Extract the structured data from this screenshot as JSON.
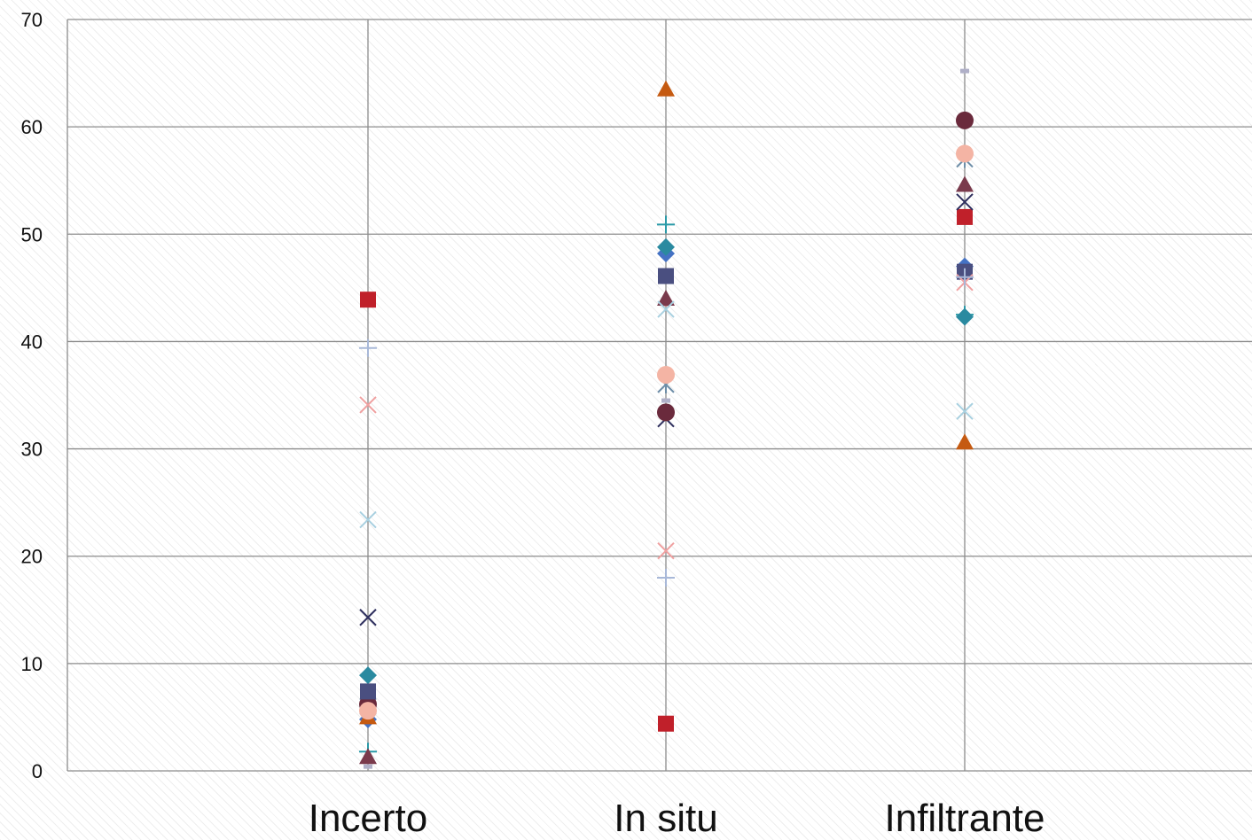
{
  "chart_data": {
    "type": "scatter",
    "categories": [
      "Incerto",
      "In situ",
      "Infiltrante"
    ],
    "ylim": [
      0,
      70
    ],
    "yticks": [
      0,
      10,
      20,
      30,
      40,
      50,
      60,
      70
    ],
    "grid": true,
    "series": [
      {
        "marker": "diamond",
        "color": "#4472c4",
        "values": [
          4.8,
          48.2,
          47.0
        ]
      },
      {
        "marker": "square",
        "color": "#c0202a",
        "values": [
          43.9,
          4.4,
          51.6
        ]
      },
      {
        "marker": "triangle",
        "color": "#c55a11",
        "values": [
          5.0,
          63.5,
          30.6
        ]
      },
      {
        "marker": "x",
        "color": "#2e2f5e",
        "values": [
          14.3,
          32.8,
          53.0
        ]
      },
      {
        "marker": "star",
        "color": "#6e8ea8",
        "values": [
          6.0,
          36.0,
          57.0
        ]
      },
      {
        "marker": "circle",
        "color": "#6a2a3c",
        "values": [
          6.2,
          33.4,
          60.6
        ]
      },
      {
        "marker": "plus",
        "color": "#2a9aa8",
        "values": [
          1.8,
          50.9,
          42.5
        ]
      },
      {
        "marker": "dash",
        "color": "#b0b0c8",
        "values": [
          0.4,
          34.5,
          65.2
        ]
      },
      {
        "marker": "dash",
        "color": "#d06060",
        "values": [
          5.5,
          43.5,
          57.6
        ]
      },
      {
        "marker": "diamond",
        "color": "#2a8aa0",
        "values": [
          8.9,
          48.8,
          42.3
        ]
      },
      {
        "marker": "square",
        "color": "#4a4f80",
        "values": [
          7.4,
          46.1,
          46.5
        ]
      },
      {
        "marker": "triangle",
        "color": "#7a3a4c",
        "values": [
          1.3,
          44.0,
          54.6
        ]
      },
      {
        "marker": "x",
        "color": "#a8d0e0",
        "values": [
          23.4,
          43.0,
          33.5
        ]
      },
      {
        "marker": "x",
        "color": "#f0a0a0",
        "values": [
          34.1,
          20.5,
          45.5
        ]
      },
      {
        "marker": "plus",
        "color": "#a8b8d8",
        "values": [
          39.4,
          18.0,
          46.0
        ]
      },
      {
        "marker": "circle",
        "color": "#f4b4a4",
        "values": [
          5.6,
          36.9,
          57.5
        ]
      }
    ]
  }
}
